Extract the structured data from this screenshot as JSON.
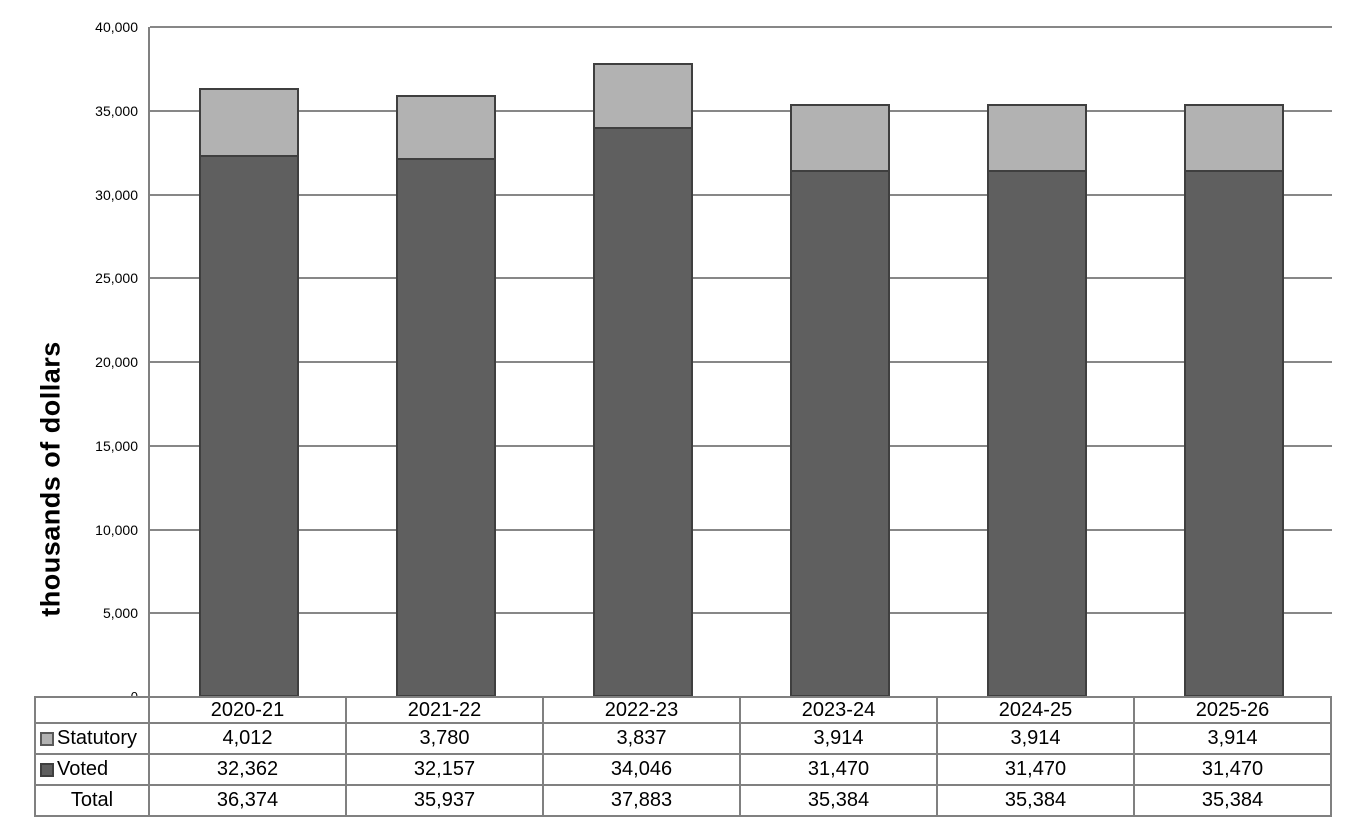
{
  "chart_data": {
    "type": "bar",
    "stacked": true,
    "title": "",
    "xlabel": "",
    "ylabel": "thousands of dollars",
    "categories": [
      "2020-21",
      "2021-22",
      "2022-23",
      "2023-24",
      "2024-25",
      "2025-26"
    ],
    "series": [
      {
        "name": "Statutory",
        "color": "#b2b2b2",
        "values": [
          4012,
          3780,
          3837,
          3914,
          3914,
          3914
        ]
      },
      {
        "name": "Voted",
        "color": "#5f5f5f",
        "values": [
          32362,
          32157,
          34046,
          31470,
          31470,
          31470
        ]
      }
    ],
    "stack_order_bottom_to_top": [
      "Voted",
      "Statutory"
    ],
    "totals": {
      "label": "Total",
      "values": [
        36374,
        35937,
        37883,
        35384,
        35384,
        35384
      ]
    },
    "ylim": [
      0,
      40000
    ],
    "ytick_step": 5000,
    "ytick_labels": [
      "0",
      "5,000",
      "10,000",
      "15,000",
      "20,000",
      "25,000",
      "30,000",
      "35,000",
      "40,000"
    ],
    "grid": true,
    "legend_position": "table-below",
    "table_values_display": {
      "Statutory": [
        "4,012",
        "3,780",
        "3,837",
        "3,914",
        "3,914",
        "3,914"
      ],
      "Voted": [
        "32,362",
        "32,157",
        "34,046",
        "31,470",
        "31,470",
        "31,470"
      ],
      "Total": [
        "36,374",
        "35,937",
        "37,883",
        "35,384",
        "35,384",
        "35,384"
      ]
    },
    "colors": {
      "bar_border": "#3f3f3f",
      "gridline": "#878787",
      "axis_line": "#808080",
      "table_border": "#808080"
    }
  }
}
